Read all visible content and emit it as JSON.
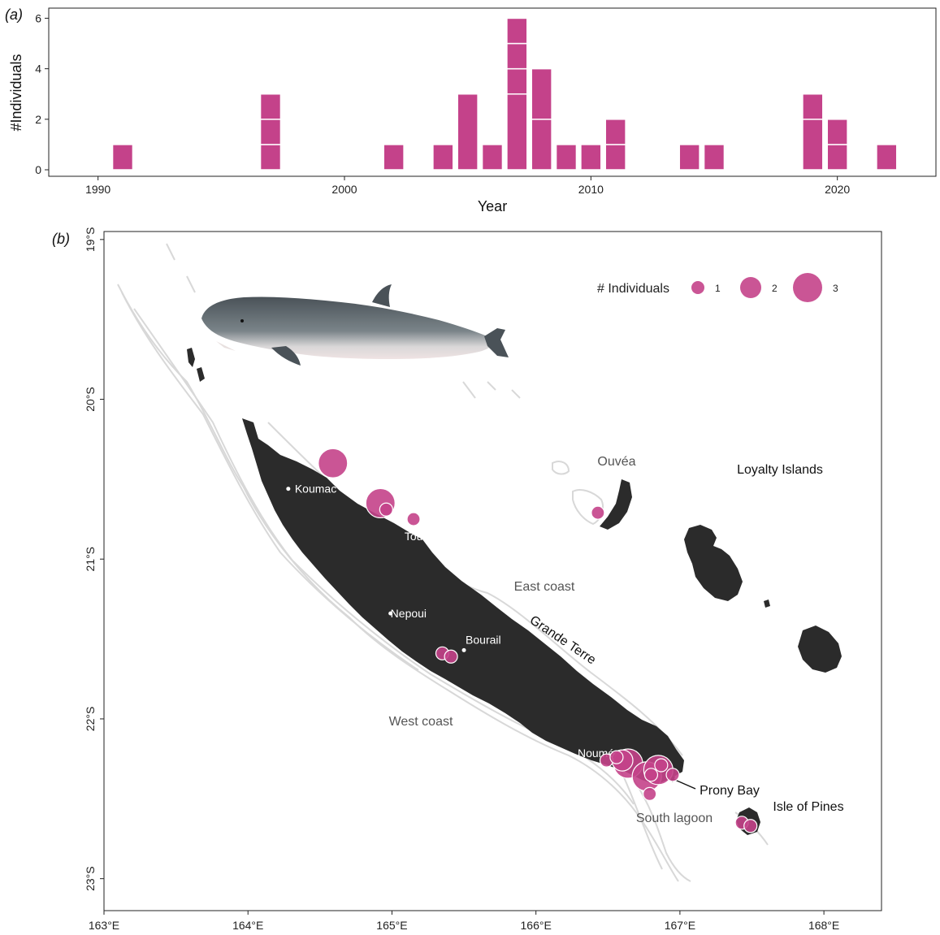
{
  "chart_data": [
    {
      "type": "bar",
      "panel_label": "(a)",
      "xlabel": "Year",
      "ylabel": "#Individuals",
      "xlim": [
        1988,
        2024
      ],
      "ylim": [
        0,
        6
      ],
      "x_ticks": [
        1990,
        2000,
        2010,
        2020
      ],
      "y_ticks": [
        0,
        2,
        4,
        6
      ],
      "bar_color": "#c4428a",
      "grid": false,
      "note": "stacked unit bars: each white line separates one record from another",
      "stacks": [
        {
          "year": 1991,
          "segments": [
            1
          ]
        },
        {
          "year": 1997,
          "segments": [
            1,
            1,
            1
          ]
        },
        {
          "year": 2002,
          "segments": [
            1
          ]
        },
        {
          "year": 2004,
          "segments": [
            1
          ]
        },
        {
          "year": 2005,
          "segments": [
            3
          ]
        },
        {
          "year": 2006,
          "segments": [
            1
          ]
        },
        {
          "year": 2007,
          "segments": [
            3,
            1,
            1,
            1
          ]
        },
        {
          "year": 2008,
          "segments": [
            2,
            2
          ]
        },
        {
          "year": 2009,
          "segments": [
            1
          ]
        },
        {
          "year": 2010,
          "segments": [
            1
          ]
        },
        {
          "year": 2011,
          "segments": [
            1,
            1
          ]
        },
        {
          "year": 2014,
          "segments": [
            1
          ]
        },
        {
          "year": 2015,
          "segments": [
            1
          ]
        },
        {
          "year": 2019,
          "segments": [
            2,
            1
          ]
        },
        {
          "year": 2020,
          "segments": [
            1,
            1
          ]
        },
        {
          "year": 2022,
          "segments": [
            1
          ]
        }
      ]
    },
    {
      "type": "scatter",
      "panel_label": "(b)",
      "xlim": [
        163,
        168.4
      ],
      "ylim": [
        -23.2,
        -18.95
      ],
      "x_ticks": [
        {
          "value": 163,
          "label": "163°E"
        },
        {
          "value": 164,
          "label": "164°E"
        },
        {
          "value": 165,
          "label": "165°E"
        },
        {
          "value": 166,
          "label": "166°E"
        },
        {
          "value": 167,
          "label": "167°E"
        },
        {
          "value": 168,
          "label": "168°E"
        }
      ],
      "y_ticks": [
        {
          "value": -19,
          "label": "19°S"
        },
        {
          "value": -20,
          "label": "20°S"
        },
        {
          "value": -21,
          "label": "21°S"
        },
        {
          "value": -22,
          "label": "22°S"
        },
        {
          "value": -23,
          "label": "23°S"
        }
      ],
      "legend": {
        "title": "# Individuals",
        "placement": "top-right",
        "entries": [
          {
            "label": "1",
            "size": 1
          },
          {
            "label": "2",
            "size": 2
          },
          {
            "label": "3",
            "size": 3
          }
        ]
      },
      "point_color": "#c4428a",
      "points": [
        {
          "lon": 164.59,
          "lat": -20.4,
          "n": 3
        },
        {
          "lon": 164.92,
          "lat": -20.65,
          "n": 3
        },
        {
          "lon": 164.96,
          "lat": -20.69,
          "n": 1
        },
        {
          "lon": 165.15,
          "lat": -20.75,
          "n": 1
        },
        {
          "lon": 166.43,
          "lat": -20.71,
          "n": 1
        },
        {
          "lon": 165.35,
          "lat": -21.59,
          "n": 1
        },
        {
          "lon": 165.41,
          "lat": -21.61,
          "n": 1
        },
        {
          "lon": 166.49,
          "lat": -22.26,
          "n": 1
        },
        {
          "lon": 166.56,
          "lat": -22.24,
          "n": 1
        },
        {
          "lon": 166.6,
          "lat": -22.26,
          "n": 2
        },
        {
          "lon": 166.64,
          "lat": -22.28,
          "n": 3
        },
        {
          "lon": 166.77,
          "lat": -22.36,
          "n": 3
        },
        {
          "lon": 166.85,
          "lat": -22.32,
          "n": 3
        },
        {
          "lon": 166.8,
          "lat": -22.35,
          "n": 1
        },
        {
          "lon": 166.87,
          "lat": -22.29,
          "n": 1
        },
        {
          "lon": 166.95,
          "lat": -22.35,
          "n": 1
        },
        {
          "lon": 166.79,
          "lat": -22.47,
          "n": 1
        },
        {
          "lon": 167.43,
          "lat": -22.65,
          "n": 1
        },
        {
          "lon": 167.49,
          "lat": -22.67,
          "n": 1
        }
      ],
      "places": [
        {
          "name": "Koumac",
          "lon": 164.28,
          "lat": -20.56,
          "style": "white",
          "dot": true
        },
        {
          "name": "Touho",
          "lon": 165.24,
          "lat": -20.78,
          "style": "white",
          "dot": true
        },
        {
          "name": "Nepoui",
          "lon": 164.99,
          "lat": -21.34,
          "style": "white",
          "dot": true
        },
        {
          "name": "Bourail",
          "lon": 165.5,
          "lat": -21.57,
          "style": "white",
          "dot": true
        },
        {
          "name": "Nouméa",
          "lon": 166.45,
          "lat": -22.27,
          "style": "white",
          "dot": false
        },
        {
          "name": "Ouvéa",
          "label": "Ouvéa",
          "style": "grey"
        },
        {
          "name": "Loyalty Islands",
          "label": "Loyalty Islands",
          "style": "black"
        },
        {
          "name": "East coast",
          "label": "East coast",
          "style": "grey"
        },
        {
          "name": "Grande Terre",
          "label": "Grande Terre",
          "style": "black"
        },
        {
          "name": "West coast",
          "label": "West coast",
          "style": "grey"
        },
        {
          "name": "Prony Bay",
          "label": "Prony Bay",
          "style": "black"
        },
        {
          "name": "South lagoon",
          "label": "South lagoon",
          "style": "grey"
        },
        {
          "name": "Isle of Pines",
          "label": "Isle of Pines",
          "style": "black"
        }
      ]
    }
  ]
}
